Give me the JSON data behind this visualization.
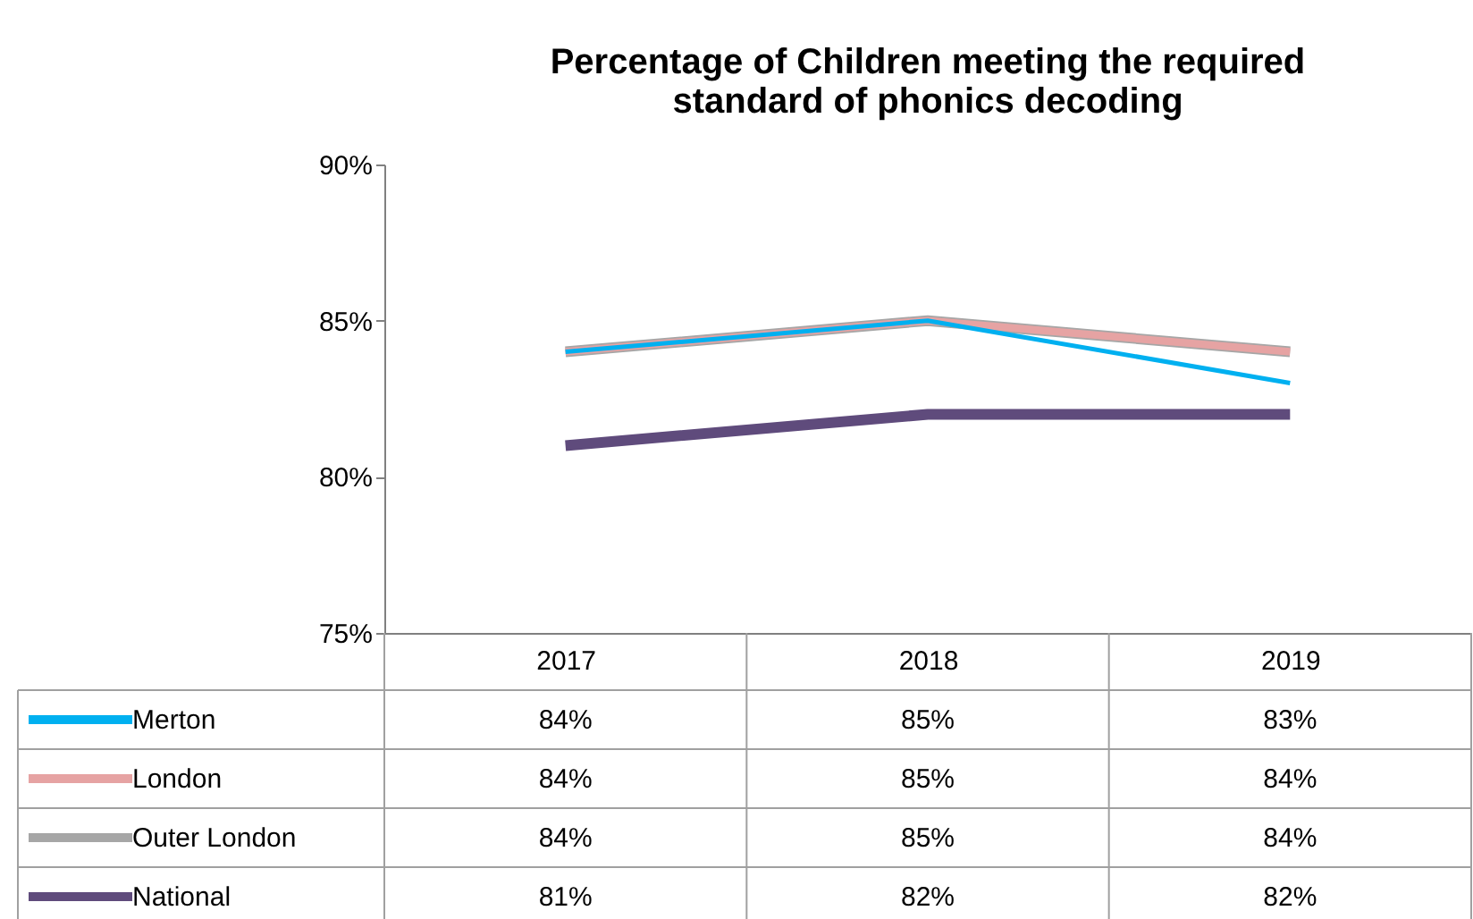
{
  "chart_data": {
    "type": "line",
    "title": "Percentage of Children meeting the required standard of phonics decoding",
    "categories": [
      "2017",
      "2018",
      "2019"
    ],
    "ylim": [
      75,
      90
    ],
    "yticks": [
      {
        "value": 75,
        "label": "75%"
      },
      {
        "value": 80,
        "label": "80%"
      },
      {
        "value": 85,
        "label": "85%"
      },
      {
        "value": 90,
        "label": "90%"
      }
    ],
    "legend": "bottom",
    "series": [
      {
        "name": "Merton",
        "color": "#00b0f0",
        "values": [
          84,
          85,
          83
        ],
        "value_labels": [
          "84%",
          "85%",
          "83%"
        ]
      },
      {
        "name": "London",
        "color": "#e6a3a3",
        "values": [
          84,
          85,
          84
        ],
        "value_labels": [
          "84%",
          "85%",
          "84%"
        ]
      },
      {
        "name": "Outer London",
        "color": "#a6a6a6",
        "values": [
          84,
          85,
          84
        ],
        "value_labels": [
          "84%",
          "85%",
          "84%"
        ]
      },
      {
        "name": "National",
        "color": "#5f4b7c",
        "values": [
          81,
          82,
          82
        ],
        "value_labels": [
          "81%",
          "82%",
          "82%"
        ]
      }
    ]
  }
}
